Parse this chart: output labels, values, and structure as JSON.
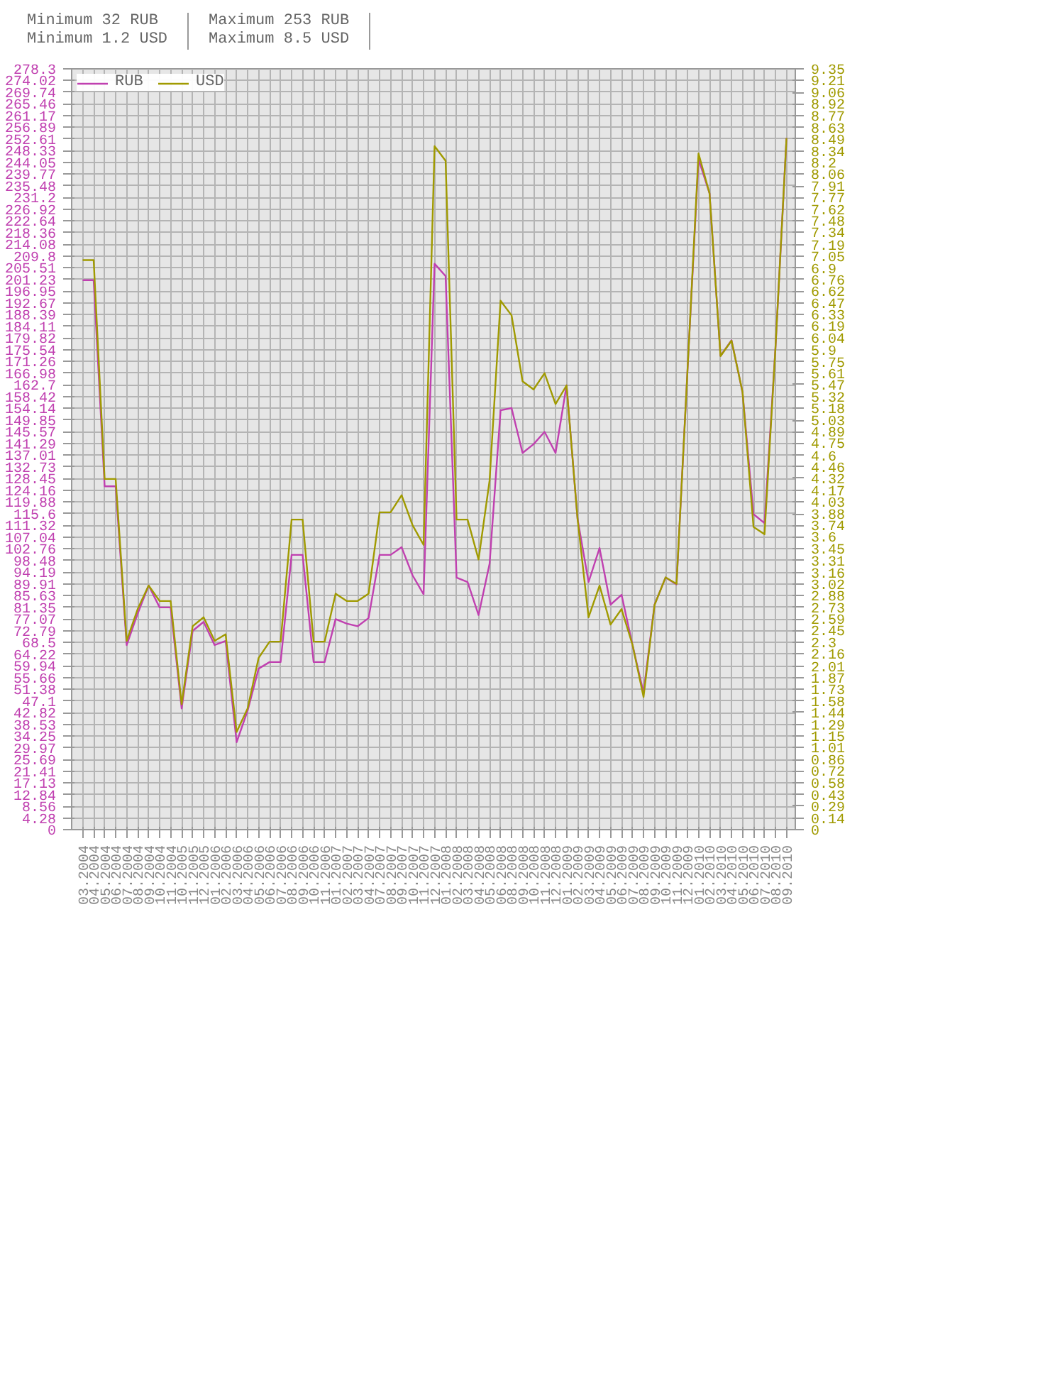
{
  "chart_data": {
    "type": "line",
    "annotations": [
      "Minimum 32 RUB",
      "Minimum 1.2 USD",
      "Maximum 253 RUB",
      "Maximum 8.5 USD"
    ],
    "categories": [
      "03.2004",
      "04.2004",
      "05.2004",
      "06.2004",
      "07.2004",
      "08.2004",
      "09.2004",
      "10.2004",
      "11.2004",
      "10.2005",
      "11.2005",
      "12.2005",
      "01.2006",
      "02.2006",
      "03.2006",
      "04.2006",
      "05.2006",
      "06.2006",
      "07.2006",
      "08.2006",
      "09.2006",
      "10.2006",
      "11.2006",
      "01.2007",
      "02.2007",
      "03.2007",
      "04.2007",
      "07.2007",
      "08.2007",
      "09.2007",
      "10.2007",
      "11.2007",
      "12.2007",
      "01.2008",
      "02.2008",
      "03.2008",
      "04.2008",
      "05.2008",
      "06.2008",
      "08.2008",
      "09.2008",
      "10.2008",
      "11.2008",
      "12.2008",
      "01.2009",
      "02.2009",
      "03.2009",
      "04.2009",
      "05.2009",
      "06.2009",
      "07.2009",
      "08.2009",
      "09.2009",
      "10.2009",
      "11.2009",
      "12.2009",
      "01.2010",
      "02.2010",
      "03.2010",
      "04.2010",
      "05.2010",
      "06.2010",
      "07.2010",
      "08.2010",
      "09.2010"
    ],
    "series": [
      {
        "name": "RUB",
        "color": "#c040b0",
        "values": [
          201,
          201,
          125.6,
          125.6,
          67.5,
          79,
          89.3,
          81.3,
          81.3,
          44.3,
          72.7,
          76,
          67.5,
          69,
          32,
          43.5,
          58.9,
          61.3,
          61.3,
          100.5,
          100.5,
          61.3,
          61.3,
          77,
          75.4,
          74.4,
          77.4,
          100.5,
          100.5,
          103.3,
          93,
          86.1,
          207,
          202.5,
          92.2,
          90.6,
          78.5,
          97.2,
          153.4,
          154.2,
          137.8,
          141,
          145.5,
          137.8,
          162.5,
          113.7,
          90.6,
          103,
          82.3,
          85.9,
          67.5,
          50.1,
          82.3,
          92.2,
          89.7,
          168.3,
          245.2,
          232.8,
          173.3,
          179,
          160,
          115.4,
          112.1,
          176.5,
          253
        ]
      },
      {
        "name": "USD",
        "color": "#a09a00",
        "axis": "y2",
        "values": [
          7.0,
          7.0,
          4.31,
          4.31,
          2.32,
          2.71,
          3.0,
          2.81,
          2.81,
          1.54,
          2.5,
          2.61,
          2.32,
          2.4,
          1.2,
          1.49,
          2.11,
          2.31,
          2.31,
          3.81,
          3.81,
          2.31,
          2.31,
          2.9,
          2.81,
          2.81,
          2.9,
          3.9,
          3.9,
          4.11,
          3.74,
          3.5,
          8.4,
          8.22,
          3.81,
          3.81,
          3.32,
          4.29,
          6.5,
          6.32,
          5.51,
          5.41,
          5.61,
          5.23,
          5.46,
          3.82,
          2.61,
          3.0,
          2.52,
          2.71,
          2.27,
          1.63,
          2.76,
          3.1,
          3.02,
          5.65,
          8.31,
          7.82,
          5.82,
          6.01,
          5.38,
          3.72,
          3.63,
          5.93,
          8.5
        ]
      }
    ],
    "ylim": [
      0,
      278.3
    ],
    "yticks": [
      0,
      4.28,
      8.56,
      12.84,
      17.13,
      21.41,
      25.69,
      29.97,
      34.25,
      38.53,
      42.82,
      47.1,
      51.38,
      55.66,
      59.94,
      64.22,
      68.5,
      72.79,
      77.07,
      81.35,
      85.63,
      89.91,
      94.19,
      98.48,
      102.76,
      107.04,
      111.32,
      115.6,
      119.88,
      124.16,
      128.45,
      132.73,
      137.01,
      141.29,
      145.57,
      149.85,
      154.14,
      158.42,
      162.7,
      166.98,
      171.26,
      175.54,
      179.82,
      184.11,
      188.39,
      192.67,
      196.95,
      201.23,
      205.51,
      209.8,
      214.08,
      218.36,
      222.64,
      226.92,
      231.2,
      235.48,
      239.77,
      244.05,
      248.33,
      252.61,
      256.89,
      261.17,
      265.46,
      269.74,
      274.02,
      278.3
    ],
    "y2lim": [
      0,
      9.35
    ],
    "y2ticks": [
      0,
      0.14,
      0.29,
      0.43,
      0.58,
      0.72,
      0.86,
      1.01,
      1.15,
      1.29,
      1.44,
      1.58,
      1.73,
      1.87,
      2.01,
      2.16,
      2.3,
      2.45,
      2.59,
      2.73,
      2.88,
      3.02,
      3.16,
      3.31,
      3.45,
      3.6,
      3.74,
      3.88,
      4.03,
      4.17,
      4.32,
      4.46,
      4.6,
      4.75,
      4.89,
      5.03,
      5.18,
      5.32,
      5.47,
      5.61,
      5.75,
      5.9,
      6.04,
      6.19,
      6.33,
      6.47,
      6.62,
      6.76,
      6.9,
      7.05,
      7.19,
      7.34,
      7.48,
      7.62,
      7.77,
      7.91,
      8.06,
      8.2,
      8.34,
      8.49,
      8.63,
      8.77,
      8.92,
      9.06,
      9.21,
      9.35
    ],
    "grid": true,
    "legend": "top left"
  }
}
